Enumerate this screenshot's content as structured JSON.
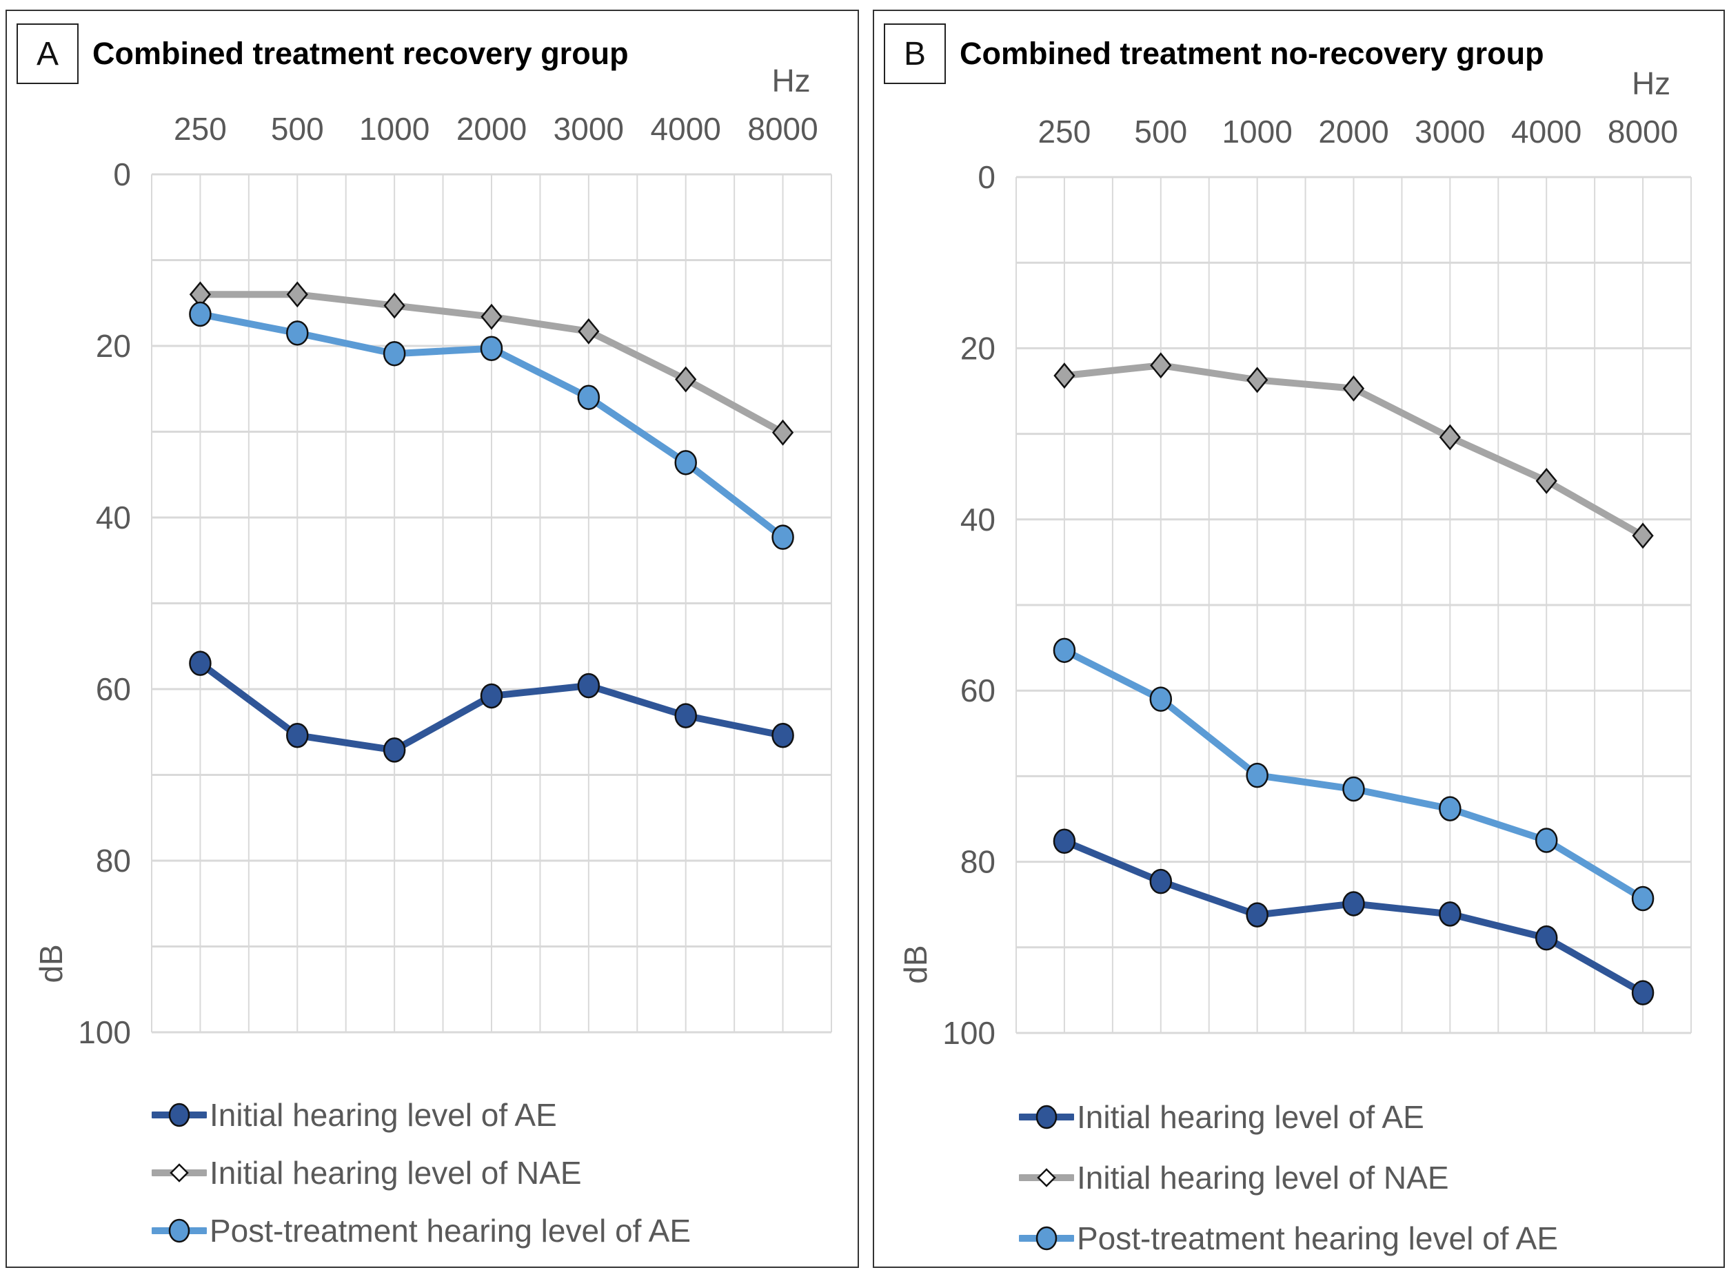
{
  "chart_data": [
    {
      "type": "line",
      "panel_label": "A",
      "title": "Combined treatment recovery group",
      "xlabel": "Hz",
      "ylabel": "dB",
      "categories": [
        "250",
        "500",
        "1000",
        "2000",
        "3000",
        "4000",
        "8000"
      ],
      "ylim": [
        0,
        100
      ],
      "y_inverted": true,
      "yticks": [
        "0",
        "20",
        "40",
        "60",
        "80",
        "100"
      ],
      "grid": true,
      "legend_position": "bottom",
      "series": [
        {
          "name": "Initial hearing level of AE",
          "color": "#2F5597",
          "marker": "circle",
          "values": [
            57.0,
            65.4,
            67.1,
            60.8,
            59.6,
            63.1,
            65.4
          ]
        },
        {
          "name": "Initial hearing level of NAE",
          "color": "#A5A5A5",
          "marker": "diamond",
          "values": [
            14.0,
            14.0,
            15.3,
            16.6,
            18.3,
            23.9,
            30.1
          ]
        },
        {
          "name": "Post-treatment hearing level of AE",
          "color": "#5B9BD5",
          "marker": "circle",
          "values": [
            16.3,
            18.5,
            20.9,
            20.3,
            26.0,
            33.6,
            42.3
          ]
        }
      ]
    },
    {
      "type": "line",
      "panel_label": "B",
      "title": "Combined treatment no-recovery group",
      "xlabel": "Hz",
      "ylabel": "dB",
      "categories": [
        "250",
        "500",
        "1000",
        "2000",
        "3000",
        "4000",
        "8000"
      ],
      "ylim": [
        0,
        100
      ],
      "y_inverted": true,
      "yticks": [
        "0",
        "20",
        "40",
        "60",
        "80",
        "100"
      ],
      "grid": true,
      "legend_position": "bottom",
      "series": [
        {
          "name": "Initial hearing level of AE",
          "color": "#2F5597",
          "marker": "circle",
          "values": [
            77.6,
            82.3,
            86.2,
            84.9,
            86.1,
            88.9,
            95.3
          ]
        },
        {
          "name": "Initial hearing level of NAE",
          "color": "#A5A5A5",
          "marker": "diamond",
          "values": [
            23.2,
            22.0,
            23.7,
            24.7,
            30.4,
            35.5,
            41.9
          ]
        },
        {
          "name": "Post-treatment hearing level of AE",
          "color": "#5B9BD5",
          "marker": "circle",
          "values": [
            55.3,
            61.0,
            69.9,
            71.5,
            73.8,
            77.5,
            84.3
          ]
        }
      ]
    }
  ]
}
